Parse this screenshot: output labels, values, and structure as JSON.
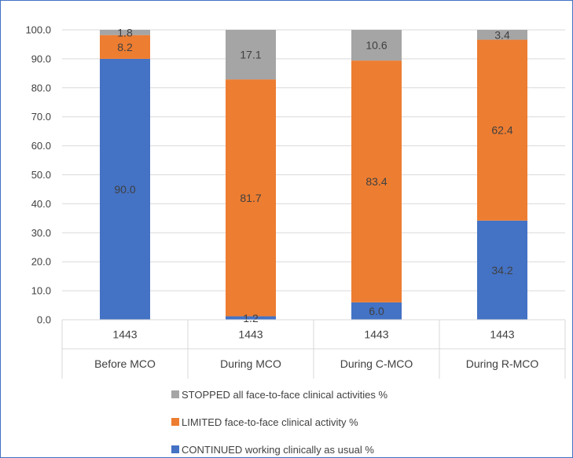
{
  "chart_data": {
    "type": "bar",
    "stacked": true,
    "categories": [
      "Before MCO",
      "During MCO",
      "During C-MCO",
      "During R-MCO"
    ],
    "category_counts": [
      "1443",
      "1443",
      "1443",
      "1443"
    ],
    "ylim": [
      0,
      100
    ],
    "yticks": [
      "0.0",
      "10.0",
      "20.0",
      "30.0",
      "40.0",
      "50.0",
      "60.0",
      "70.0",
      "80.0",
      "90.0",
      "100.0"
    ],
    "grid": true,
    "legend_position": "bottom",
    "series": [
      {
        "name": "CONTINUED working clinically as usual %",
        "color": "#4472c4",
        "values": [
          90.0,
          1.2,
          6.0,
          34.2
        ],
        "labels": [
          "90.0",
          "1.2",
          "6.0",
          "34.2"
        ]
      },
      {
        "name": "LIMITED face-to-face clinical activity %",
        "color": "#ed7d31",
        "values": [
          8.2,
          81.7,
          83.4,
          62.4
        ],
        "labels": [
          "8.2",
          "81.7",
          "83.4",
          "62.4"
        ]
      },
      {
        "name": "STOPPED all face-to-face clinical activities  %",
        "color": "#a5a5a5",
        "values": [
          1.8,
          17.1,
          10.6,
          3.4
        ],
        "labels": [
          "1.8",
          "17.1",
          "10.6",
          "3.4"
        ]
      }
    ],
    "title": "",
    "xlabel": "",
    "ylabel": ""
  }
}
